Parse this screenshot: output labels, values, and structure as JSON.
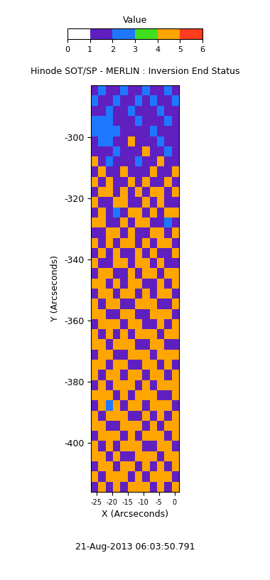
{
  "chart_data": {
    "type": "heatmap",
    "title": "Hinode SOT/SP - MERLIN : Inversion End Status",
    "x_label": "X (Arcseconds)",
    "y_label": "Y (Arcseconds)",
    "annotation": "21-Aug-2013 06:03:50.791",
    "xlim": [
      -26.8,
      1.4
    ],
    "xticks": [
      -25,
      -20,
      -15,
      -10,
      -5,
      0
    ],
    "ylim": [
      -416,
      -283
    ],
    "yticks": [
      -400,
      -380,
      -360,
      -340,
      -320,
      -300
    ],
    "colorbar_title": "Value",
    "colorbar_range": [
      0,
      6
    ],
    "colorbar_ticks": [
      0,
      1,
      2,
      3,
      4,
      5,
      6
    ],
    "colors": [
      "#ffffff",
      "#6020c0",
      "#1e78ff",
      "#40e020",
      "#ffa500",
      "#ff3c1e"
    ],
    "cells": [
      [
        1,
        2,
        1,
        1,
        2,
        1,
        1,
        2,
        1,
        1,
        2,
        1
      ],
      [
        2,
        1,
        1,
        2,
        1,
        1,
        2,
        1,
        2,
        1,
        1,
        2
      ],
      [
        1,
        1,
        2,
        1,
        1,
        2,
        1,
        1,
        1,
        2,
        1,
        1
      ],
      [
        2,
        2,
        2,
        1,
        1,
        1,
        2,
        1,
        1,
        1,
        2,
        1
      ],
      [
        2,
        2,
        2,
        2,
        1,
        1,
        1,
        1,
        2,
        1,
        1,
        1
      ],
      [
        1,
        2,
        2,
        1,
        1,
        4,
        1,
        1,
        1,
        2,
        1,
        1
      ],
      [
        1,
        1,
        1,
        2,
        1,
        1,
        1,
        4,
        1,
        1,
        2,
        1
      ],
      [
        4,
        1,
        2,
        1,
        1,
        1,
        2,
        1,
        1,
        4,
        1,
        1
      ],
      [
        1,
        4,
        1,
        1,
        4,
        1,
        1,
        1,
        4,
        1,
        1,
        4
      ],
      [
        4,
        1,
        4,
        1,
        1,
        4,
        1,
        4,
        1,
        1,
        4,
        1
      ],
      [
        1,
        4,
        4,
        1,
        4,
        1,
        4,
        1,
        4,
        4,
        1,
        4
      ],
      [
        4,
        1,
        1,
        4,
        4,
        1,
        1,
        4,
        1,
        4,
        1,
        1
      ],
      [
        1,
        4,
        1,
        2,
        1,
        4,
        4,
        1,
        4,
        1,
        4,
        4
      ],
      [
        4,
        4,
        1,
        1,
        4,
        1,
        4,
        4,
        1,
        1,
        2,
        1
      ],
      [
        1,
        1,
        4,
        4,
        1,
        4,
        1,
        1,
        4,
        4,
        1,
        4
      ],
      [
        4,
        1,
        4,
        1,
        4,
        4,
        1,
        4,
        1,
        4,
        4,
        1
      ],
      [
        1,
        4,
        1,
        4,
        1,
        1,
        4,
        1,
        4,
        1,
        1,
        4
      ],
      [
        4,
        1,
        1,
        4,
        4,
        1,
        4,
        4,
        1,
        4,
        1,
        1
      ],
      [
        1,
        4,
        4,
        1,
        1,
        4,
        1,
        4,
        4,
        1,
        4,
        4
      ],
      [
        4,
        4,
        1,
        4,
        1,
        4,
        4,
        1,
        1,
        4,
        1,
        4
      ],
      [
        1,
        4,
        4,
        1,
        4,
        4,
        1,
        4,
        1,
        4,
        4,
        1
      ],
      [
        4,
        1,
        4,
        4,
        1,
        1,
        4,
        4,
        4,
        1,
        1,
        4
      ],
      [
        4,
        4,
        1,
        1,
        4,
        4,
        1,
        1,
        4,
        4,
        4,
        1
      ],
      [
        1,
        4,
        4,
        4,
        1,
        4,
        4,
        1,
        1,
        4,
        1,
        4
      ],
      [
        4,
        1,
        4,
        1,
        4,
        1,
        4,
        4,
        4,
        1,
        4,
        4
      ],
      [
        4,
        4,
        1,
        4,
        4,
        4,
        1,
        1,
        4,
        4,
        1,
        1
      ],
      [
        1,
        4,
        4,
        1,
        1,
        4,
        4,
        4,
        1,
        4,
        4,
        4
      ],
      [
        4,
        4,
        1,
        4,
        4,
        1,
        1,
        4,
        4,
        1,
        4,
        1
      ],
      [
        4,
        1,
        4,
        4,
        1,
        4,
        4,
        1,
        4,
        4,
        1,
        4
      ],
      [
        1,
        4,
        1,
        4,
        4,
        4,
        1,
        4,
        1,
        4,
        4,
        4
      ],
      [
        4,
        4,
        4,
        1,
        4,
        1,
        4,
        4,
        4,
        1,
        1,
        4
      ],
      [
        1,
        4,
        2,
        4,
        1,
        4,
        4,
        1,
        4,
        4,
        4,
        1
      ],
      [
        4,
        1,
        4,
        4,
        4,
        1,
        1,
        4,
        1,
        4,
        1,
        4
      ],
      [
        4,
        4,
        1,
        1,
        4,
        4,
        4,
        1,
        4,
        1,
        4,
        4
      ],
      [
        1,
        4,
        4,
        4,
        1,
        4,
        1,
        4,
        4,
        4,
        1,
        4
      ],
      [
        4,
        1,
        4,
        1,
        4,
        4,
        4,
        1,
        1,
        4,
        4,
        1
      ],
      [
        4,
        4,
        1,
        4,
        1,
        1,
        4,
        4,
        4,
        1,
        4,
        4
      ],
      [
        1,
        4,
        4,
        1,
        4,
        4,
        1,
        4,
        1,
        4,
        1,
        4
      ],
      [
        4,
        1,
        4,
        4,
        4,
        1,
        4,
        1,
        4,
        4,
        4,
        1
      ],
      [
        1,
        4,
        1,
        4,
        1,
        4,
        4,
        4,
        1,
        4,
        1,
        4
      ]
    ]
  }
}
